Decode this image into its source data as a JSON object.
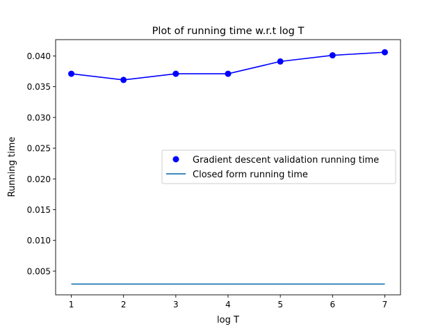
{
  "chart_data": {
    "type": "line",
    "title": "Plot of running time w.r.t log T",
    "xlabel": "log T",
    "ylabel": "Running time",
    "xlim": [
      0.7,
      7.3
    ],
    "ylim": [
      0.00115,
      0.04265
    ],
    "xticks": [
      1,
      2,
      3,
      4,
      5,
      6,
      7
    ],
    "yticks": [
      0.005,
      0.01,
      0.015,
      0.02,
      0.025,
      0.03,
      0.035,
      0.04
    ],
    "ytick_labels": [
      "0.005",
      "0.010",
      "0.015",
      "0.020",
      "0.025",
      "0.030",
      "0.035",
      "0.040"
    ],
    "grid": false,
    "legend_position": "center-right",
    "x": [
      1,
      2,
      3,
      4,
      5,
      6,
      7
    ],
    "series": [
      {
        "name": "Gradient descent validation running time",
        "values": [
          0.0371,
          0.0361,
          0.0371,
          0.0371,
          0.0391,
          0.0401,
          0.0406
        ],
        "style": "line+markers",
        "color": "#0000ff"
      },
      {
        "name": "Closed form running time",
        "values": [
          0.0029,
          0.0029,
          0.0029,
          0.0029,
          0.0029,
          0.0029,
          0.0029
        ],
        "style": "line",
        "color": "#1f77b4"
      }
    ]
  }
}
